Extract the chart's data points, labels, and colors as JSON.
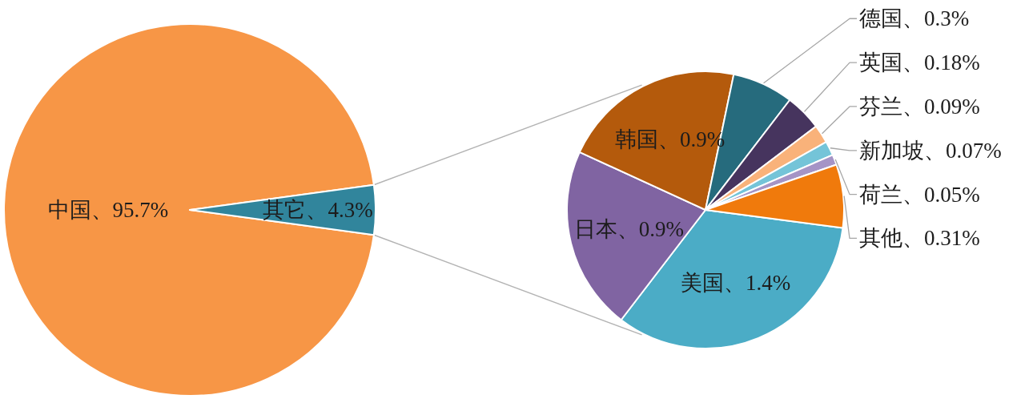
{
  "chart_data": [
    {
      "type": "pie",
      "categories": [
        "中国",
        "其它"
      ],
      "values": [
        95.7,
        4.3
      ],
      "colors": [
        "#F79646",
        "#31859C"
      ],
      "value_labels": [
        "、95.7%",
        "、4.3%"
      ]
    },
    {
      "type": "pie",
      "categories": [
        "美国",
        "日本",
        "韩国",
        "德国",
        "英国",
        "芬兰",
        "新加坡",
        "荷兰",
        "其他"
      ],
      "values": [
        1.4,
        0.9,
        0.9,
        0.3,
        0.18,
        0.09,
        0.07,
        0.05,
        0.31
      ],
      "colors": [
        "#4BACC6",
        "#8064A2",
        "#B45A0C",
        "#266B7D",
        "#46345E",
        "#F9B27A",
        "#74C4D8",
        "#A594C6",
        "#F07A0C"
      ],
      "value_labels": [
        "、1.4%",
        "、0.9%",
        "、0.9%",
        "、0.3%",
        "、0.18%",
        "、0.09%",
        "、0.07%",
        "、0.05%",
        "、0.31%"
      ]
    }
  ]
}
